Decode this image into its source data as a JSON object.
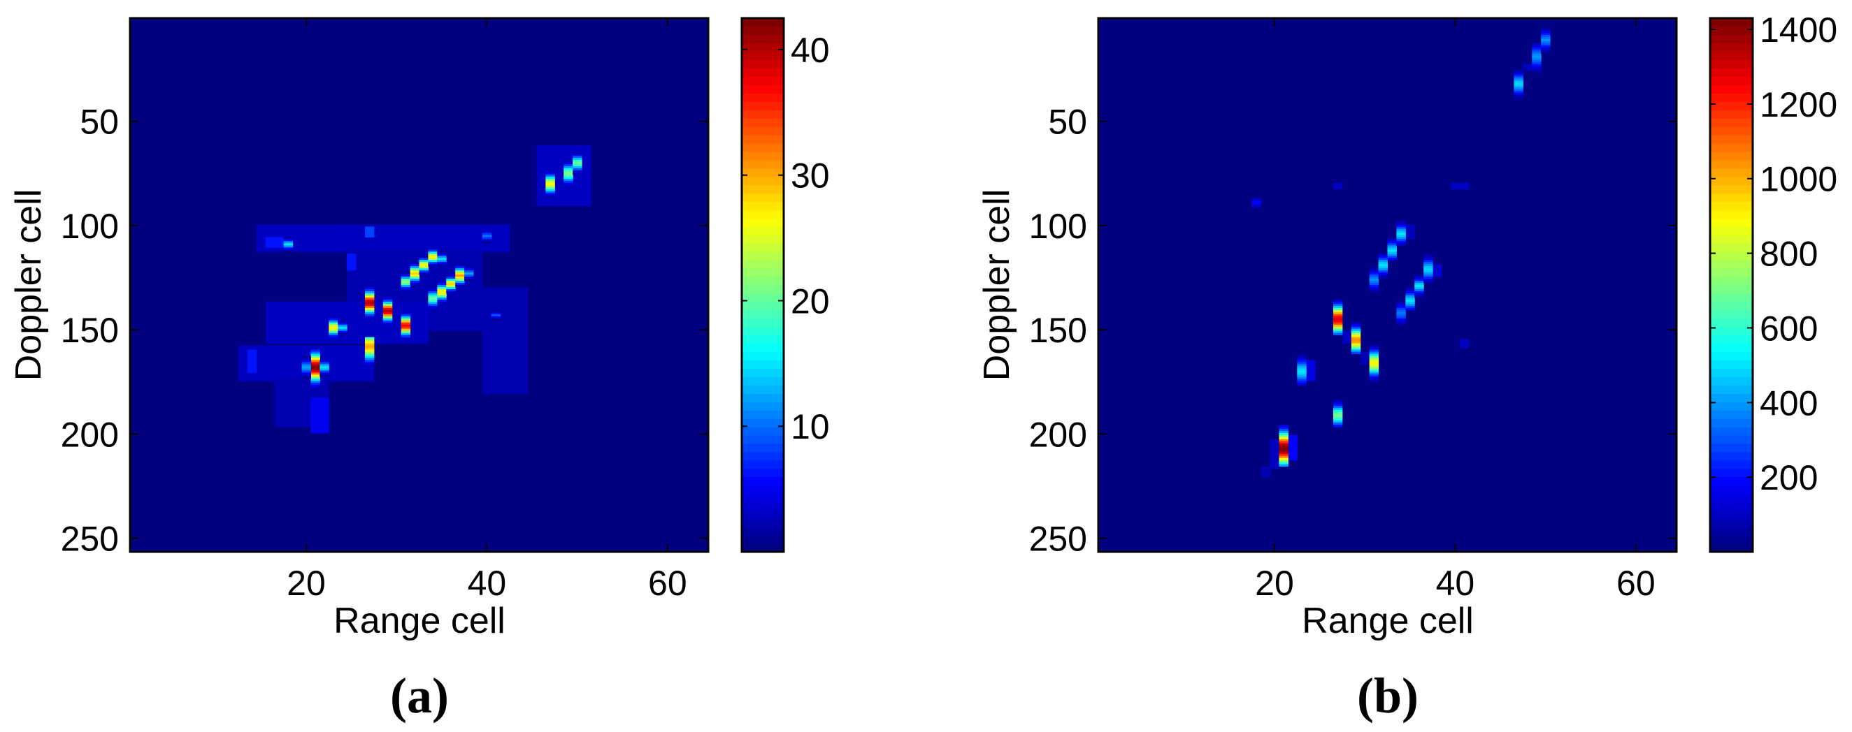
{
  "chart_data": [
    {
      "type": "heatmap",
      "panel_label": "(a)",
      "xlabel": "Range cell",
      "ylabel": "Doppler cell",
      "xlim": [
        0.5,
        64.5
      ],
      "ylim": [
        0.5,
        256.5
      ],
      "y_reversed": true,
      "xticks": [
        20,
        40,
        60
      ],
      "yticks": [
        50,
        100,
        150,
        200,
        250
      ],
      "colormap": "jet",
      "clim": [
        0,
        42.5
      ],
      "colorbar_ticks": [
        10,
        20,
        30,
        40
      ],
      "background_value": 0,
      "patches": [
        {
          "range": [
            15,
            27
          ],
          "doppler": [
            100,
            112
          ],
          "value": 3
        },
        {
          "range": [
            25,
            42
          ],
          "doppler": [
            100,
            112
          ],
          "value": 3
        },
        {
          "range": [
            25,
            39
          ],
          "doppler": [
            112,
            150
          ],
          "value": 2.5
        },
        {
          "range": [
            16,
            33
          ],
          "doppler": [
            137,
            156
          ],
          "value": 3
        },
        {
          "range": [
            13,
            27
          ],
          "doppler": [
            158,
            174
          ],
          "value": 3
        },
        {
          "range": [
            17,
            22
          ],
          "doppler": [
            174,
            196
          ],
          "value": 2.5
        },
        {
          "range": [
            40,
            44
          ],
          "doppler": [
            130,
            180
          ],
          "value": 2.5
        },
        {
          "range": [
            46,
            51
          ],
          "doppler": [
            62,
            90
          ],
          "value": 3
        },
        {
          "range": [
            16,
            17
          ],
          "doppler": [
            106,
            110
          ],
          "value": 6
        },
        {
          "range": [
            27,
            27
          ],
          "doppler": [
            101,
            105
          ],
          "value": 8
        },
        {
          "range": [
            14,
            14
          ],
          "doppler": [
            160,
            170
          ],
          "value": 6
        },
        {
          "range": [
            21,
            22
          ],
          "doppler": [
            183,
            199
          ],
          "value": 5
        },
        {
          "range": [
            25,
            25
          ],
          "doppler": [
            114,
            121
          ],
          "value": 6
        }
      ],
      "streaks": [
        {
          "range": 27,
          "doppler": [
            130,
            143
          ],
          "peak": 40,
          "peak_at": 137
        },
        {
          "range": 29,
          "doppler": [
            135,
            147
          ],
          "peak": 40,
          "peak_at": 141
        },
        {
          "range": 31,
          "doppler": [
            142,
            153
          ],
          "peak": 37,
          "peak_at": 148
        },
        {
          "range": 27,
          "doppler": [
            154,
            167
          ],
          "peak": 30,
          "peak_at": 158
        },
        {
          "range": 21,
          "doppler": [
            160,
            177
          ],
          "peak": 42,
          "peak_at": 168
        },
        {
          "range": 22,
          "doppler": [
            165,
            172
          ],
          "peak": 15,
          "peak_at": 168
        },
        {
          "range": 20,
          "doppler": [
            163,
            173
          ],
          "peak": 12,
          "peak_at": 168
        },
        {
          "range": 23,
          "doppler": [
            144,
            154
          ],
          "peak": 27,
          "peak_at": 149
        },
        {
          "range": 24,
          "doppler": [
            146,
            152
          ],
          "peak": 15,
          "peak_at": 149
        },
        {
          "range": 18,
          "doppler": [
            106,
            112
          ],
          "peak": 15,
          "peak_at": 109
        },
        {
          "range": 31,
          "doppler": [
            123,
            130
          ],
          "peak": 22,
          "peak_at": 127
        },
        {
          "range": 32,
          "doppler": [
            119,
            128
          ],
          "peak": 28,
          "peak_at": 123
        },
        {
          "range": 33,
          "doppler": [
            116,
            123
          ],
          "peak": 27,
          "peak_at": 119
        },
        {
          "range": 34,
          "doppler": [
            112,
            119
          ],
          "peak": 27,
          "peak_at": 115
        },
        {
          "range": 35,
          "doppler": [
            113,
            119
          ],
          "peak": 15,
          "peak_at": 116
        },
        {
          "range": 34,
          "doppler": [
            130,
            139
          ],
          "peak": 20,
          "peak_at": 135
        },
        {
          "range": 35,
          "doppler": [
            127,
            137
          ],
          "peak": 27,
          "peak_at": 132
        },
        {
          "range": 36,
          "doppler": [
            124,
            132
          ],
          "peak": 28,
          "peak_at": 128
        },
        {
          "range": 37,
          "doppler": [
            120,
            129
          ],
          "peak": 30,
          "peak_at": 124
        },
        {
          "range": 38,
          "doppler": [
            121,
            126
          ],
          "peak": 12,
          "peak_at": 123
        },
        {
          "range": 40,
          "doppler": [
            103,
            108
          ],
          "peak": 10,
          "peak_at": 105
        },
        {
          "range": 41,
          "doppler": [
            141,
            145
          ],
          "peak": 9,
          "peak_at": 143
        },
        {
          "range": 47,
          "doppler": [
            75,
            86
          ],
          "peak": 26,
          "peak_at": 80
        },
        {
          "range": 49,
          "doppler": [
            69,
            80
          ],
          "peak": 21,
          "peak_at": 75
        },
        {
          "range": 50,
          "doppler": [
            65,
            75
          ],
          "peak": 20,
          "peak_at": 70
        }
      ]
    },
    {
      "type": "heatmap",
      "panel_label": "(b)",
      "xlabel": "Range cell",
      "ylabel": "Doppler cell",
      "xlim": [
        0.5,
        64.5
      ],
      "ylim": [
        0.5,
        256.5
      ],
      "y_reversed": true,
      "xticks": [
        20,
        40,
        60
      ],
      "yticks": [
        50,
        100,
        150,
        200,
        250
      ],
      "colormap": "jet",
      "clim": [
        0,
        1430
      ],
      "colorbar_ticks": [
        200,
        400,
        600,
        800,
        1000,
        1200,
        1400
      ],
      "background_value": 0,
      "patches": [
        {
          "range": [
            22,
            22
          ],
          "doppler": [
            201,
            212
          ],
          "value": 200
        },
        {
          "range": [
            20,
            20
          ],
          "doppler": [
            203,
            216
          ],
          "value": 90
        },
        {
          "range": [
            19,
            19
          ],
          "doppler": [
            216,
            220
          ],
          "value": 80
        },
        {
          "range": [
            27,
            27
          ],
          "doppler": [
            80,
            82
          ],
          "value": 100
        },
        {
          "range": [
            40,
            41
          ],
          "doppler": [
            80,
            82
          ],
          "value": 100
        },
        {
          "range": [
            41,
            41
          ],
          "doppler": [
            155,
            158
          ],
          "value": 100
        },
        {
          "range": [
            48,
            48
          ],
          "doppler": [
            23,
            25
          ],
          "value": 90
        },
        {
          "range": [
            24,
            24
          ],
          "doppler": [
            165,
            174
          ],
          "value": 150
        },
        {
          "range": [
            28,
            28
          ],
          "doppler": [
            151,
            156
          ],
          "value": 90
        },
        {
          "range": [
            30,
            30
          ],
          "doppler": [
            161,
            166
          ],
          "value": 80
        },
        {
          "range": [
            35,
            35
          ],
          "doppler": [
            100,
            106
          ],
          "value": 100
        },
        {
          "range": [
            38,
            38
          ],
          "doppler": [
            119,
            124
          ],
          "value": 120
        }
      ],
      "streaks": [
        {
          "range": 27,
          "doppler": [
            136,
            152
          ],
          "peak": 1280,
          "peak_at": 145
        },
        {
          "range": 29,
          "doppler": [
            147,
            161
          ],
          "peak": 1050,
          "peak_at": 155
        },
        {
          "range": 31,
          "doppler": [
            158,
            174
          ],
          "peak": 900,
          "peak_at": 166
        },
        {
          "range": 23,
          "doppler": [
            162,
            176
          ],
          "peak": 500,
          "peak_at": 170
        },
        {
          "range": 31,
          "doppler": [
            120,
            131
          ],
          "peak": 380,
          "peak_at": 126
        },
        {
          "range": 32,
          "doppler": [
            114,
            125
          ],
          "peak": 500,
          "peak_at": 119
        },
        {
          "range": 33,
          "doppler": [
            106,
            116
          ],
          "peak": 500,
          "peak_at": 112
        },
        {
          "range": 34,
          "doppler": [
            98,
            109
          ],
          "peak": 500,
          "peak_at": 104
        },
        {
          "range": 34,
          "doppler": [
            136,
            147
          ],
          "peak": 350,
          "peak_at": 142
        },
        {
          "range": 35,
          "doppler": [
            130,
            140
          ],
          "peak": 500,
          "peak_at": 136
        },
        {
          "range": 36,
          "doppler": [
            124,
            134
          ],
          "peak": 500,
          "peak_at": 129
        },
        {
          "range": 37,
          "doppler": [
            114,
            127
          ],
          "peak": 480,
          "peak_at": 121
        },
        {
          "range": 21,
          "doppler": [
            196,
            215
          ],
          "peak": 1430,
          "peak_at": 207
        },
        {
          "range": 27,
          "doppler": [
            184,
            196
          ],
          "peak": 700,
          "peak_at": 191
        },
        {
          "range": 47,
          "doppler": [
            26,
            39
          ],
          "peak": 480,
          "peak_at": 32
        },
        {
          "range": 49,
          "doppler": [
            13,
            27
          ],
          "peak": 380,
          "peak_at": 19
        },
        {
          "range": 50,
          "doppler": [
            5,
            17
          ],
          "peak": 380,
          "peak_at": 11
        },
        {
          "range": 18,
          "doppler": [
            86,
            92
          ],
          "peak": 200,
          "peak_at": 89
        }
      ]
    }
  ]
}
